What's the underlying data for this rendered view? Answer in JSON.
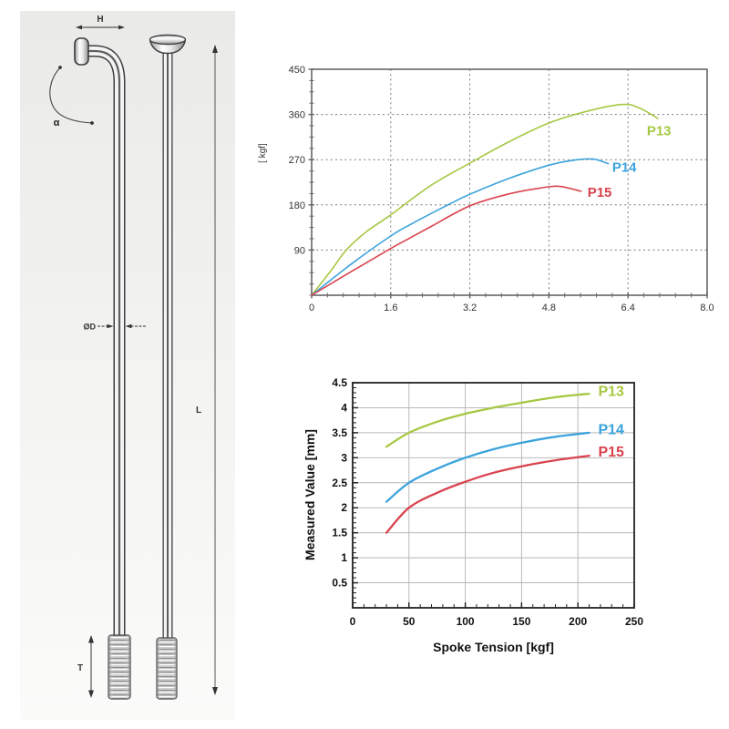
{
  "figure": {
    "description": "Spoke dimension diagram with tension charts"
  },
  "diagram": {
    "labels": {
      "h": "H",
      "alpha": "α",
      "diameter": "ØD",
      "length": "L",
      "thread": "T"
    }
  },
  "colors": {
    "p13_green": "#a6c843",
    "p14_blue": "#3ba3dc",
    "p15_red": "#d9434e",
    "grid_dark": "#7a7a7a",
    "grid_light": "#b9b9b9",
    "axis_dark": "#666666",
    "axis_black": "#222222"
  },
  "chart_data": [
    {
      "type": "line",
      "title": "",
      "xlabel": "",
      "ylabel": "[ kgf]",
      "xlim": [
        0,
        8
      ],
      "ylim": [
        0,
        450
      ],
      "x_ticks": [
        0,
        1.6,
        3.2,
        4.8,
        6.4,
        8.0
      ],
      "x_tick_labels": [
        "0",
        "1.6",
        "3.2",
        "4.8",
        "6.4",
        "8.0"
      ],
      "y_ticks": [
        90,
        180,
        270,
        360,
        450
      ],
      "y_tick_labels": [
        "90",
        "180",
        "270",
        "360",
        "450"
      ],
      "x_minor_step": 0.32,
      "y_minor_step": 22.5,
      "grid": "dashed",
      "legend_position": "inline-right",
      "series": [
        {
          "name": "P13",
          "color": "#a6c843",
          "label_pos": [
            6.78,
            318
          ],
          "points": [
            [
              0,
              0
            ],
            [
              0.4,
              50
            ],
            [
              0.7,
              90
            ],
            [
              1.1,
              126
            ],
            [
              1.6,
              160
            ],
            [
              2.4,
              218
            ],
            [
              3.2,
              263
            ],
            [
              4.0,
              306
            ],
            [
              4.8,
              343
            ],
            [
              5.6,
              367
            ],
            [
              6.3,
              380
            ],
            [
              6.65,
              372
            ],
            [
              7.0,
              352
            ]
          ]
        },
        {
          "name": "P14",
          "color": "#3ba3dc",
          "label_pos": [
            6.08,
            246
          ],
          "points": [
            [
              0,
              0
            ],
            [
              0.8,
              62
            ],
            [
              1.6,
              118
            ],
            [
              2.0,
              141
            ],
            [
              2.8,
              182
            ],
            [
              3.2,
              201
            ],
            [
              4.0,
              233
            ],
            [
              4.8,
              259
            ],
            [
              5.3,
              269
            ],
            [
              5.7,
              271
            ],
            [
              6.0,
              262
            ]
          ]
        },
        {
          "name": "P15",
          "color": "#d9434e",
          "label_pos": [
            5.58,
            196
          ],
          "points": [
            [
              0,
              0
            ],
            [
              0.8,
              47
            ],
            [
              1.6,
              93
            ],
            [
              1.95,
              112
            ],
            [
              2.4,
              136
            ],
            [
              3.2,
              178
            ],
            [
              4.0,
              202
            ],
            [
              4.6,
              213
            ],
            [
              5.0,
              217
            ],
            [
              5.45,
              207
            ]
          ]
        }
      ]
    },
    {
      "type": "line",
      "title": "",
      "xlabel": "Spoke Tension [kgf]",
      "ylabel": "Measured Value [mm]",
      "xlim": [
        0,
        250
      ],
      "ylim": [
        0,
        4.5
      ],
      "x_ticks": [
        0,
        50,
        100,
        150,
        200,
        250
      ],
      "x_tick_labels": [
        "0",
        "50",
        "100",
        "150",
        "200",
        "250"
      ],
      "y_ticks": [
        0.5,
        1,
        1.5,
        2,
        2.5,
        3,
        3.5,
        4,
        4.5
      ],
      "y_tick_labels": [
        "0.5",
        "1",
        "1.5",
        "2",
        "2.5",
        "3",
        "3.5",
        "4",
        "4.5"
      ],
      "x_minor_step": 10,
      "y_minor_step": 0.1,
      "grid": "solid",
      "legend_position": "inline-right",
      "series": [
        {
          "name": "P13",
          "color": "#a6c843",
          "label_pos": [
            218,
            4.24
          ],
          "points": [
            [
              30,
              3.22
            ],
            [
              50,
              3.5
            ],
            [
              75,
              3.72
            ],
            [
              100,
              3.88
            ],
            [
              125,
              4.0
            ],
            [
              150,
              4.1
            ],
            [
              180,
              4.21
            ],
            [
              210,
              4.28
            ]
          ]
        },
        {
          "name": "P14",
          "color": "#3ba3dc",
          "label_pos": [
            218,
            3.47
          ],
          "points": [
            [
              30,
              2.12
            ],
            [
              50,
              2.5
            ],
            [
              75,
              2.78
            ],
            [
              100,
              3.0
            ],
            [
              125,
              3.17
            ],
            [
              150,
              3.3
            ],
            [
              180,
              3.42
            ],
            [
              210,
              3.5
            ]
          ]
        },
        {
          "name": "P15",
          "color": "#d9434e",
          "label_pos": [
            218,
            3.02
          ],
          "points": [
            [
              30,
              1.5
            ],
            [
              50,
              2.0
            ],
            [
              75,
              2.3
            ],
            [
              100,
              2.52
            ],
            [
              125,
              2.7
            ],
            [
              150,
              2.83
            ],
            [
              180,
              2.95
            ],
            [
              210,
              3.04
            ]
          ]
        }
      ]
    }
  ]
}
